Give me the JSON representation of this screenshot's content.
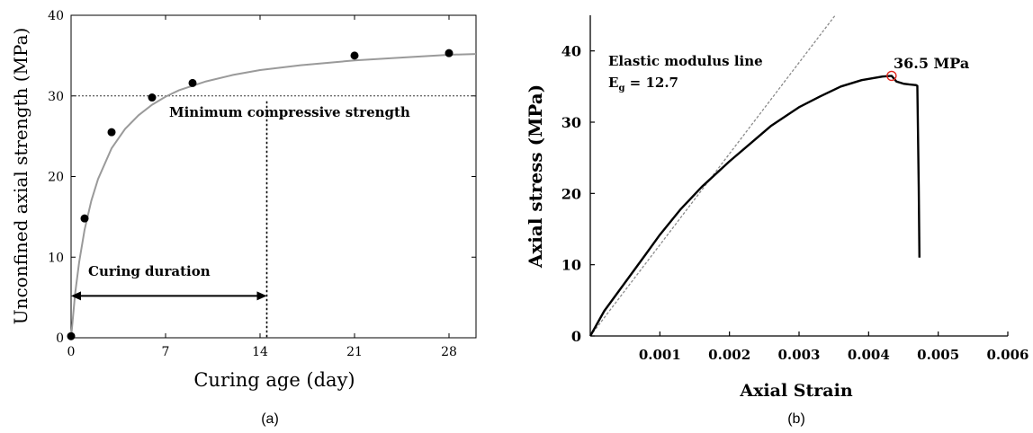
{
  "chart_data": [
    {
      "type": "scatter",
      "panel_label": "(a)",
      "title": "",
      "xlabel": "Curing age (day)",
      "ylabel": "Unconfined axial strength (MPa)",
      "xlim": [
        0,
        30
      ],
      "ylim": [
        0,
        40
      ],
      "xticks": [
        "0",
        "7",
        "14",
        "21",
        "28"
      ],
      "yticks": [
        "0",
        "10",
        "20",
        "30",
        "40"
      ],
      "grid": false,
      "points": {
        "x": [
          0,
          1,
          3,
          6,
          9,
          21,
          28
        ],
        "y": [
          0.2,
          14.8,
          25.5,
          29.8,
          31.6,
          35.0,
          35.3
        ]
      },
      "fit_curve": {
        "x": [
          0,
          0.3,
          0.6,
          1,
          1.5,
          2,
          3,
          4,
          5,
          6,
          7,
          8,
          10,
          12,
          14,
          17,
          21,
          25,
          28,
          30
        ],
        "y": [
          0,
          5.5,
          9.4,
          13.4,
          17.0,
          19.7,
          23.5,
          25.9,
          27.6,
          28.9,
          29.9,
          30.7,
          31.8,
          32.6,
          33.2,
          33.8,
          34.4,
          34.8,
          35.1,
          35.2
        ]
      },
      "reference_line": {
        "y": 30,
        "label": "Minimum compressive strength"
      },
      "vertical_line": {
        "x": 14.5
      },
      "annotation": {
        "label": "Curing duration",
        "x_start": 0,
        "x_end": 14.5,
        "y": 5.2
      }
    },
    {
      "type": "line",
      "panel_label": "(b)",
      "title": "",
      "xlabel": "Axial Strain",
      "ylabel": "Axial stress (MPa)",
      "xlim": [
        0,
        0.006
      ],
      "ylim": [
        0,
        45
      ],
      "xticks": [
        "0.001",
        "0.002",
        "0.003",
        "0.004",
        "0.005",
        "0.006"
      ],
      "yticks": [
        "0",
        "10",
        "20",
        "30",
        "40"
      ],
      "grid": false,
      "stress_strain": {
        "x": [
          0,
          0.0002,
          0.0005,
          0.0008,
          0.001,
          0.0013,
          0.0016,
          0.002,
          0.0023,
          0.0026,
          0.003,
          0.0033,
          0.0036,
          0.0039,
          0.0042,
          0.00433,
          0.0044,
          0.0045,
          0.00458,
          0.00468,
          0.0047,
          0.00472,
          0.00473
        ],
        "y": [
          0,
          3.5,
          7.5,
          11.5,
          14.2,
          17.8,
          20.9,
          24.5,
          27.0,
          29.5,
          32.1,
          33.6,
          35.0,
          35.9,
          36.4,
          36.5,
          35.7,
          35.4,
          35.3,
          35.2,
          35.1,
          21.0,
          11.0
        ]
      },
      "elastic_line": {
        "x": [
          0,
          0.00352
        ],
        "y": [
          0,
          45
        ]
      },
      "peak": {
        "x": 0.00433,
        "y": 36.5,
        "label": "36.5 MPa"
      },
      "annotation": {
        "line1": "Elastic modulus line",
        "line2_prefix": "E",
        "line2_sub": "g",
        "line2_suffix": " = 12.7"
      }
    }
  ]
}
